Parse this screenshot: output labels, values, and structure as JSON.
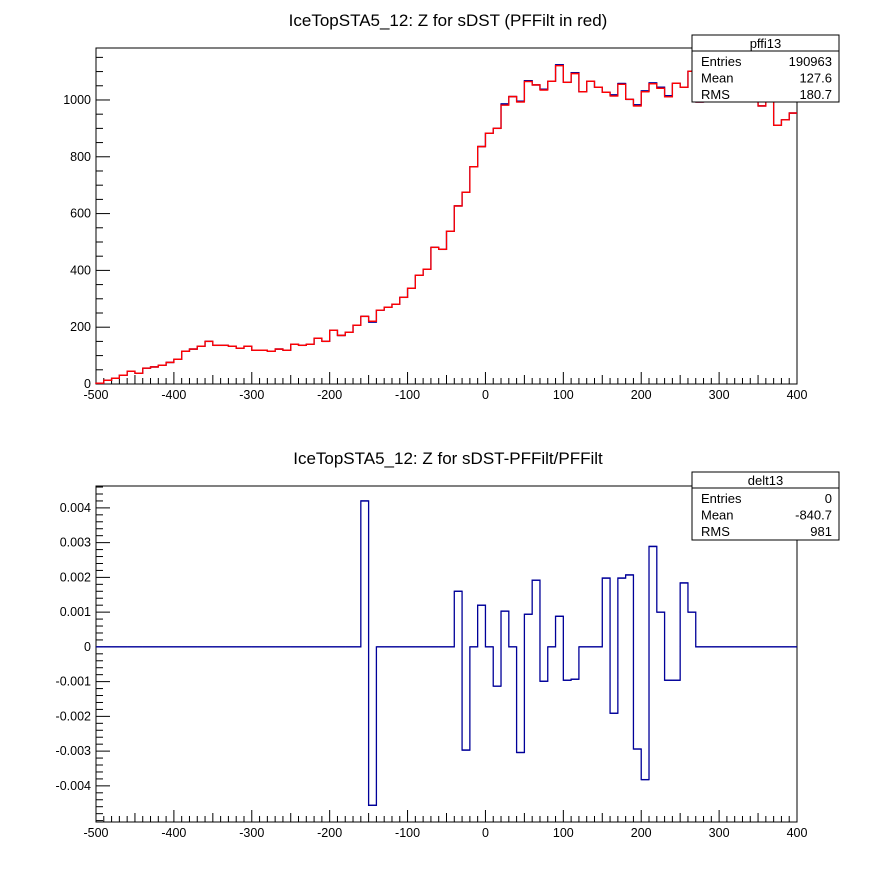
{
  "chart_data": [
    {
      "type": "histogram",
      "title": "IceTopSTA5_12: Z for sDST (PFFilt in red)",
      "xlabel": "",
      "ylabel": "",
      "xlim": [
        -500,
        400
      ],
      "ylim": [
        0,
        1183
      ],
      "bin_width": 10,
      "x_ticks": [
        "-500",
        "-400",
        "-300",
        "-200",
        "-100",
        "0",
        "100",
        "200",
        "300",
        "400"
      ],
      "y_ticks": [
        "0",
        "200",
        "400",
        "600",
        "800",
        "1000"
      ],
      "x_tick_values": [
        -500,
        -400,
        -300,
        -200,
        -100,
        0,
        100,
        200,
        300,
        400
      ],
      "y_tick_values": [
        0,
        200,
        400,
        600,
        800,
        1000
      ],
      "series": [
        {
          "name": "sDST",
          "color": "#000099",
          "values": [
            3,
            13,
            20,
            31,
            45,
            38,
            56,
            60,
            66,
            76,
            87,
            115,
            123,
            133,
            150,
            136,
            136,
            133,
            126,
            133,
            119,
            119,
            115,
            123,
            119,
            140,
            136,
            140,
            161,
            150,
            189,
            171,
            182,
            207,
            238,
            218,
            260,
            270,
            281,
            305,
            337,
            383,
            404,
            481,
            474,
            538,
            627,
            675,
            765,
            836,
            883,
            900,
            986,
            1012,
            996,
            1068,
            1053,
            1038,
            1066,
            1124,
            1062,
            1096,
            1029,
            1066,
            1045,
            1027,
            1018,
            1058,
            1002,
            983,
            1032,
            1060,
            1045,
            1015,
            1059,
            1045,
            1101,
            993,
            1000,
            1092,
            1059,
            1032,
            996,
            1000,
            1006,
            979,
            1009,
            911,
            930,
            954
          ]
        },
        {
          "name": "PFFilt",
          "color": "#ff0000",
          "values": [
            3,
            13,
            20,
            31,
            45,
            38,
            56,
            60,
            66,
            76,
            87,
            115,
            123,
            133,
            150,
            136,
            136,
            133,
            126,
            133,
            119,
            119,
            115,
            123,
            119,
            140,
            136,
            140,
            161,
            150,
            189,
            171,
            182,
            207,
            238,
            221,
            260,
            270,
            281,
            305,
            337,
            383,
            404,
            481,
            474,
            538,
            627,
            675,
            765,
            836,
            883,
            900,
            982,
            1012,
            993,
            1065,
            1053,
            1035,
            1066,
            1121,
            1062,
            1093,
            1029,
            1066,
            1045,
            1027,
            1014,
            1055,
            1002,
            979,
            1029,
            1057,
            1041,
            1011,
            1059,
            1045,
            1101,
            993,
            1000,
            1092,
            1059,
            1032,
            996,
            1000,
            1006,
            979,
            1009,
            911,
            930,
            954
          ]
        }
      ],
      "stats": {
        "name": "pffi13",
        "rows": [
          {
            "label": "Entries",
            "value": "190963"
          },
          {
            "label": "Mean",
            "value": "127.6"
          },
          {
            "label": "RMS",
            "value": "180.7"
          }
        ]
      },
      "legend_position": "top-right"
    },
    {
      "type": "histogram",
      "title": "IceTopSTA5_12: Z for sDST-PFFilt/PFFilt",
      "xlabel": "",
      "ylabel": "",
      "xlim": [
        -500,
        400
      ],
      "ylim": [
        -0.00504,
        0.00463
      ],
      "bin_width": 10,
      "x_ticks": [
        "-500",
        "-400",
        "-300",
        "-200",
        "-100",
        "0",
        "100",
        "200",
        "300",
        "400"
      ],
      "y_ticks": [
        "-0.004",
        "-0.003",
        "-0.002",
        "-0.001",
        "0",
        "0.001",
        "0.002",
        "0.003",
        "0.004"
      ],
      "x_tick_values": [
        -500,
        -400,
        -300,
        -200,
        -100,
        0,
        100,
        200,
        300,
        400
      ],
      "y_tick_values": [
        -0.004,
        -0.003,
        -0.002,
        -0.001,
        0,
        0.001,
        0.002,
        0.003,
        0.004
      ],
      "series": [
        {
          "name": "delt13",
          "color": "#000099",
          "values": [
            0,
            0,
            0,
            0,
            0,
            0,
            0,
            0,
            0,
            0,
            0,
            0,
            0,
            0,
            0,
            0,
            0,
            0,
            0,
            0,
            0,
            0,
            0,
            0,
            0,
            0,
            0,
            0,
            0,
            0,
            0,
            0,
            0,
            0,
            0.0042,
            -0.00456,
            0,
            0,
            0,
            0,
            0,
            0,
            0,
            0,
            0,
            0,
            0.0016,
            -0.00297,
            0,
            0.0012,
            0,
            -0.00113,
            0.00103,
            0,
            -0.00304,
            0.00094,
            0.00192,
            -0.00099,
            0,
            0.00088,
            -0.00096,
            -0.00093,
            0,
            0,
            0,
            0.00198,
            -0.00191,
            0.00198,
            0.00207,
            -0.00294,
            -0.00382,
            0.00289,
            0.001,
            -0.00096,
            -0.00096,
            0.00184,
            0.001,
            0,
            0,
            0,
            0,
            0,
            0,
            0,
            0,
            0,
            0,
            0,
            0,
            0
          ]
        }
      ],
      "stats": {
        "name": "delt13",
        "rows": [
          {
            "label": "Entries",
            "value": "0"
          },
          {
            "label": "Mean",
            "value": "-840.7"
          },
          {
            "label": "RMS",
            "value": "981"
          }
        ]
      },
      "legend_position": "top-right"
    }
  ]
}
